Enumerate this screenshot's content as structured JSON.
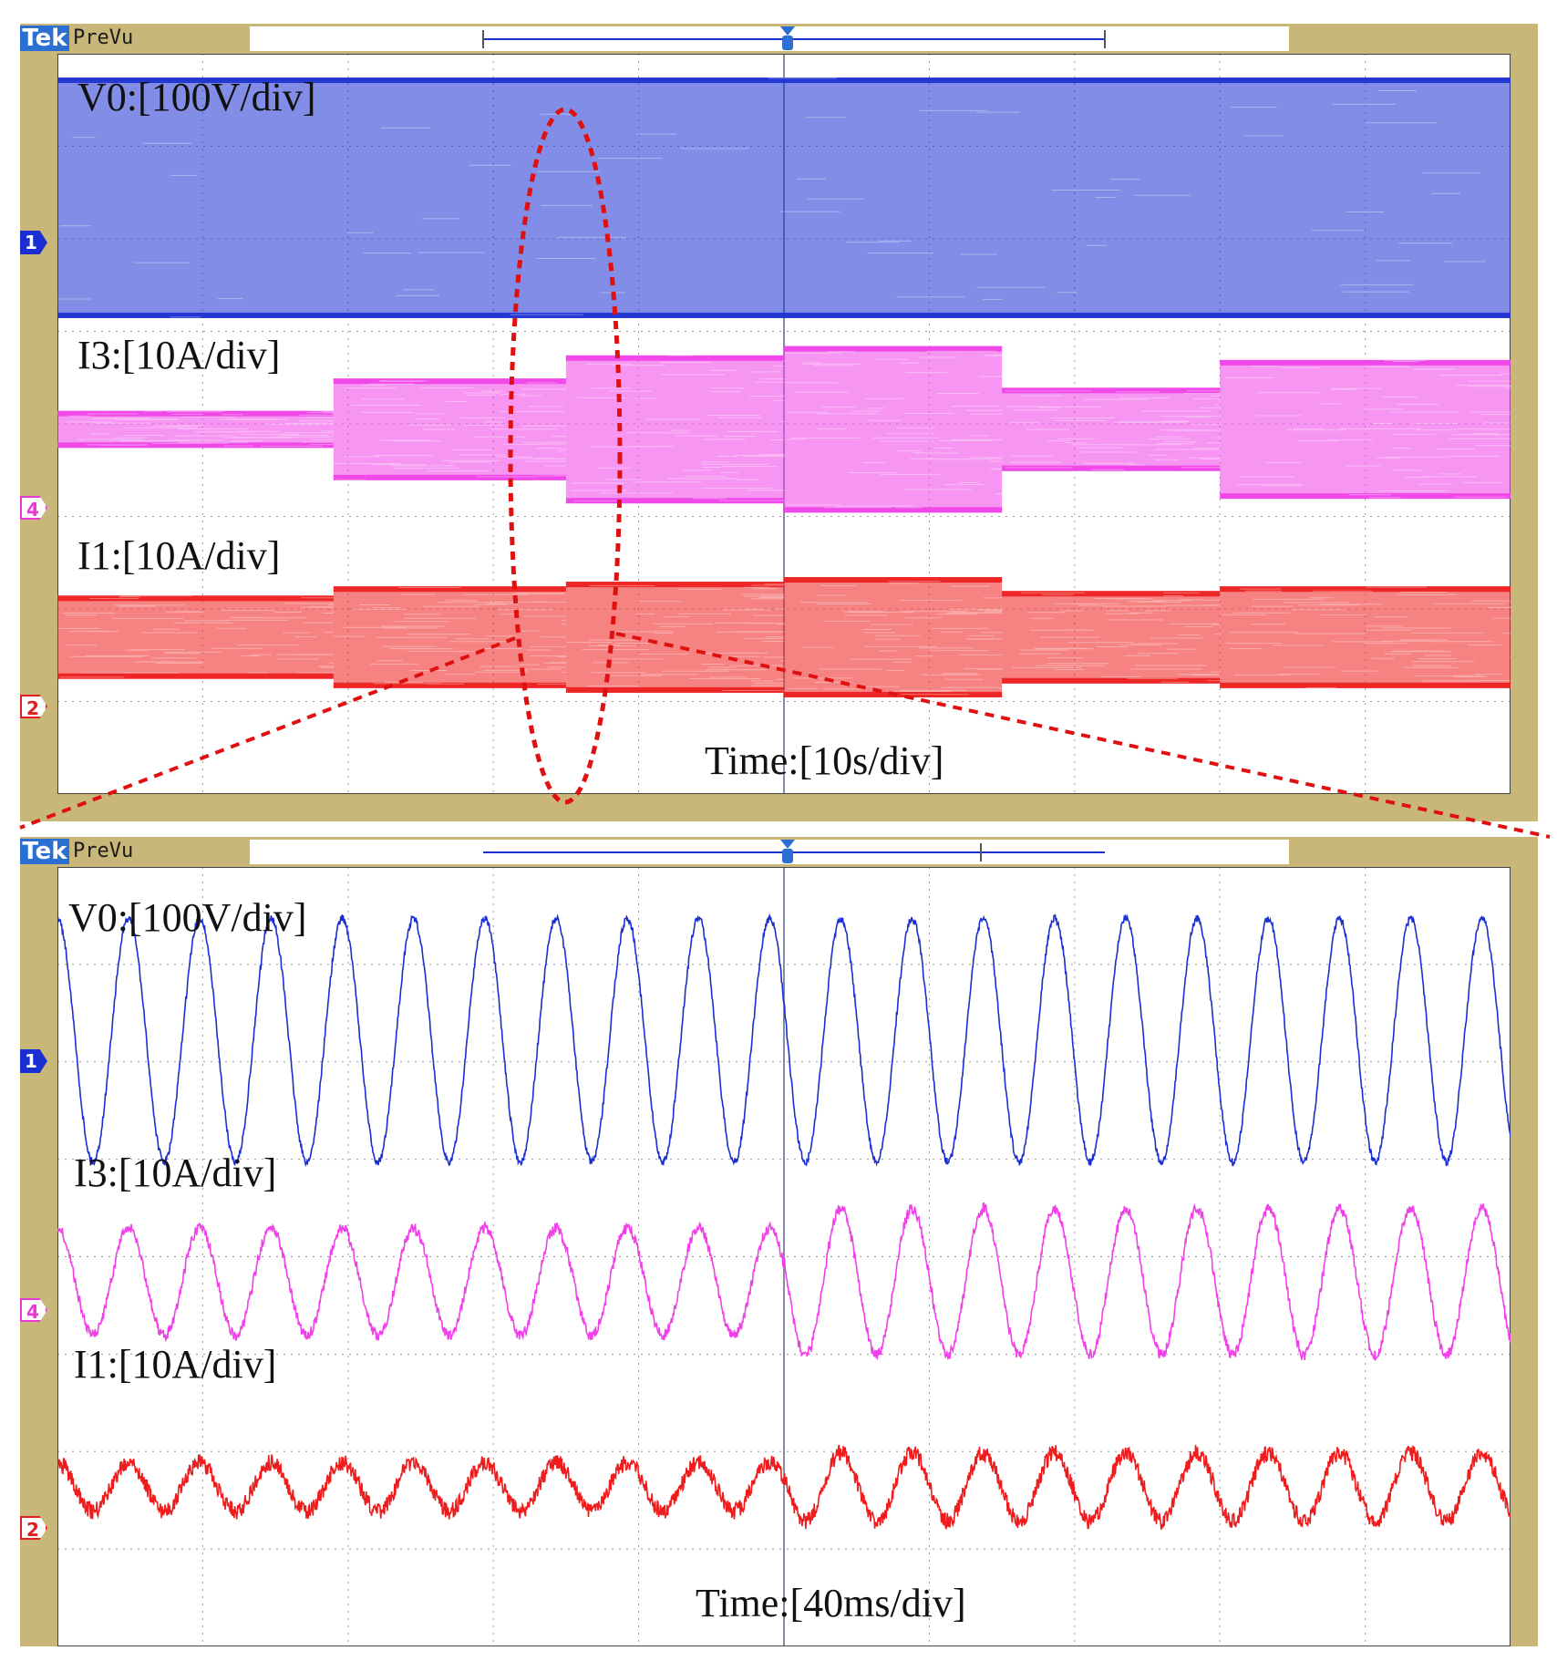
{
  "colors": {
    "ch1": "#1a2fd1",
    "ch4": "#f040e8",
    "ch2": "#ee1c1c",
    "bezel": "#c9b77a",
    "grid": "#9a9a9a",
    "annotation": "#e01010",
    "tek_badge": "#2a6fd1"
  },
  "panels": [
    {
      "brand": "Tek",
      "mode": "PreVu",
      "markers": [
        "1",
        "4",
        "2"
      ],
      "labels": {
        "v0": "V0:[100V/div]",
        "i3": "I3:[10A/div]",
        "i1": "I1:[10A/div]",
        "time": "Time:[10s/div]"
      }
    },
    {
      "brand": "Tek",
      "mode": "PreVu",
      "markers": [
        "1",
        "4",
        "2"
      ],
      "labels": {
        "v0": "V0:[100V/div]",
        "i3": "I3:[10A/div]",
        "i1": "I1:[10A/div]",
        "time": "Time:[40ms/div]"
      }
    }
  ],
  "chart_data": [
    {
      "type": "line",
      "title": "",
      "xlabel": "Time:[10s/div]",
      "time_per_div_s": 10,
      "divisions_x": 10,
      "series": [
        {
          "name": "V0",
          "scale": "100V/div",
          "envelope_divs": [
            {
              "from_div": 0,
              "to_div": 10,
              "peak_to_peak_div": 2.6
            }
          ]
        },
        {
          "name": "I3",
          "scale": "10A/div",
          "envelope_divs": [
            {
              "from_div": 0,
              "to_div": 1.9,
              "peak_to_peak_div": 0.4
            },
            {
              "from_div": 1.9,
              "to_div": 3.5,
              "peak_to_peak_div": 1.1
            },
            {
              "from_div": 3.5,
              "to_div": 5.0,
              "peak_to_peak_div": 1.6
            },
            {
              "from_div": 5.0,
              "to_div": 6.5,
              "peak_to_peak_div": 1.8
            },
            {
              "from_div": 6.5,
              "to_div": 8.0,
              "peak_to_peak_div": 0.9
            },
            {
              "from_div": 8.0,
              "to_div": 10,
              "peak_to_peak_div": 1.5
            }
          ]
        },
        {
          "name": "I1",
          "scale": "10A/div",
          "envelope_divs": [
            {
              "from_div": 0,
              "to_div": 1.9,
              "peak_to_peak_div": 0.9
            },
            {
              "from_div": 1.9,
              "to_div": 3.5,
              "peak_to_peak_div": 1.1
            },
            {
              "from_div": 3.5,
              "to_div": 5.0,
              "peak_to_peak_div": 1.2
            },
            {
              "from_div": 5.0,
              "to_div": 6.5,
              "peak_to_peak_div": 1.3
            },
            {
              "from_div": 6.5,
              "to_div": 8.0,
              "peak_to_peak_div": 1.0
            },
            {
              "from_div": 8.0,
              "to_div": 10,
              "peak_to_peak_div": 1.1
            }
          ]
        }
      ]
    },
    {
      "type": "line",
      "title": "",
      "xlabel": "Time:[40ms/div]",
      "time_per_div_ms": 40,
      "divisions_x": 10,
      "series": [
        {
          "name": "V0",
          "scale": "100V/div",
          "cycles": 20.4,
          "amplitude_div": [
            1.25,
            1.25
          ]
        },
        {
          "name": "I3",
          "scale": "10A/div",
          "cycles": 20.4,
          "amplitude_div": [
            0.55,
            0.75
          ]
        },
        {
          "name": "I1",
          "scale": "10A/div",
          "cycles": 20.4,
          "amplitude_div": [
            0.25,
            0.35
          ]
        }
      ]
    }
  ]
}
